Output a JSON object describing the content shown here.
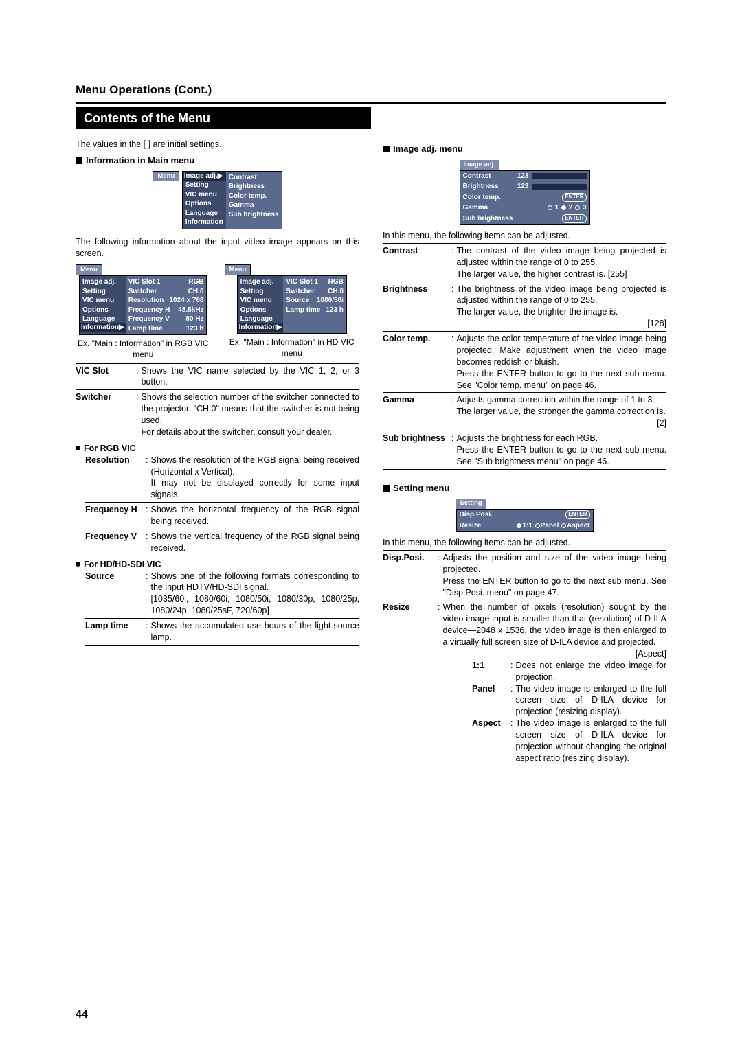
{
  "section_title": "Menu Operations (Cont.)",
  "title_bar": "Contents of the Menu",
  "intro_left": "The values in the [ ] are initial settings.",
  "info_main_heading": "Information in Main menu",
  "main_menu": {
    "tab": "Menu",
    "left": [
      "Image adj.▶",
      "Setting",
      "VIC menu",
      "Options",
      "Language",
      "Information"
    ],
    "right": [
      "Contrast",
      "Brightness",
      "Color temp.",
      "Gamma",
      "Sub brightness"
    ]
  },
  "left_paragraph": "The following information about the input video image appears on this screen.",
  "rgb_menu": {
    "tab": "Menu",
    "left": [
      "Image adj.",
      "Setting",
      "VIC menu",
      "Options",
      "Language",
      "Information▶"
    ],
    "kv": [
      {
        "k": "VIC Slot 1",
        "v": "RGB"
      },
      {
        "k": "Switcher",
        "v": "CH.0"
      },
      {
        "k": "Resolution",
        "v": "1024 x 768"
      },
      {
        "k": "Frequency H",
        "v": "48.5kHz"
      },
      {
        "k": "Frequency V",
        "v": "80 Hz"
      },
      {
        "k": "Lamp time",
        "v": "123 h"
      }
    ],
    "caption": "Ex. \"Main : Information\" in RGB VIC menu"
  },
  "hd_menu": {
    "tab": "Menu",
    "left": [
      "Image adj.",
      "Setting",
      "VIC menu",
      "Options",
      "Language",
      "Information▶"
    ],
    "kv": [
      {
        "k": "VIC Slot 1",
        "v": "RGB"
      },
      {
        "k": "Switcher",
        "v": "CH.0"
      },
      {
        "k": "Source",
        "v": "1080/50i"
      },
      {
        "k": "",
        "v": ""
      },
      {
        "k": "",
        "v": ""
      },
      {
        "k": "Lamp time",
        "v": "123 h"
      }
    ],
    "caption": "Ex. \"Main : Information\" in HD VIC menu"
  },
  "defs_left": [
    {
      "term": "VIC Slot",
      "desc": "Shows the VIC name selected by the VIC 1, 2, or 3 button."
    },
    {
      "term": "Switcher",
      "desc": "Shows the selection number of the switcher connected to the projector. \"CH.0\" means that the switcher is not being used.\nFor details about the switcher, consult your dealer."
    }
  ],
  "rgb_heading": "For RGB VIC",
  "rgb_defs": [
    {
      "term": "Resolution",
      "desc": "Shows the resolution of the RGB signal being received (Horizontal x Vertical).\nIt may not be displayed correctly for some input signals."
    },
    {
      "term": "Frequency H",
      "desc": "Shows the horizontal frequency of the RGB signal being received."
    },
    {
      "term": "Frequency V",
      "desc": "Shows the vertical frequency of the RGB signal being received."
    }
  ],
  "hd_heading": "For HD/HD-SDI VIC",
  "hd_defs": [
    {
      "term": "Source",
      "desc": "Shows one of the following formats corresponding to the input HDTV/HD-SDI signal.\n[1035/60i, 1080/60i, 1080/50i, 1080/30p, 1080/25p, 1080/24p, 1080/25sF, 720/60p]"
    },
    {
      "term": "Lamp time",
      "desc": "Shows the accumulated use hours of the light-source lamp."
    }
  ],
  "image_adj_heading": "Image adj. menu",
  "image_adj_menu": {
    "tab": "Image adj.",
    "rows": [
      {
        "label": "Contrast",
        "val": "123",
        "bar": 60
      },
      {
        "label": "Brightness",
        "val": "123",
        "bar": 40
      },
      {
        "label": "Color temp.",
        "btn": "ENTER"
      },
      {
        "label": "Gamma",
        "opts": [
          "1",
          "2",
          "3"
        ],
        "sel": 1
      },
      {
        "label": "Sub brightness",
        "btn": "ENTER"
      }
    ]
  },
  "image_adj_intro": "In this menu, the following items can be adjusted.",
  "image_adj_defs": [
    {
      "term": "Contrast",
      "desc": "The contrast of the video image being projected is adjusted within the range of 0 to 255.\nThe larger value, the higher contrast is. [255]"
    },
    {
      "term": "Brightness",
      "desc": "The brightness of the video image being projected is adjusted within the range of 0 to 255.\nThe larger value, the brighter the image is.",
      "tail": "[128]"
    },
    {
      "term": "Color temp.",
      "desc": "Adjusts the color temperature of the video image being projected. Make adjustment when the video image becomes reddish or bluish.\nPress the ENTER button to go to the next sub menu. See \"Color temp. menu\" on page 46."
    },
    {
      "term": "Gamma",
      "desc": "Adjusts gamma correction within the range of 1 to 3.\nThe larger value, the stronger the gamma correction is.",
      "tail": "[2]"
    },
    {
      "term": "Sub brightness",
      "desc": "Adjusts the brightness for each RGB.\nPress the ENTER button to go to the next sub menu. See \"Sub brightness menu\" on page 46."
    }
  ],
  "setting_heading": "Setting menu",
  "setting_menu": {
    "tab": "Setting",
    "rows": [
      {
        "label": "Disp.Posi.",
        "btn": "ENTER"
      },
      {
        "label": "Resize",
        "opts": [
          "1:1",
          "Panel",
          "Aspect"
        ],
        "sel": 0
      }
    ]
  },
  "setting_intro": "In this menu, the following items can be adjusted.",
  "setting_defs": [
    {
      "term": "Disp.Posi.",
      "desc": "Adjusts the position and size of the video image being projected.\nPress the ENTER button to go to the next sub menu. See \"Disp.Posi. menu\" on page 47."
    },
    {
      "term": "Resize",
      "desc": "When the number of pixels (resolution) sought by the video image input is smaller than that (resolution) of D-ILA device—2048 x 1536, the video image is then enlarged to a virtually full screen size of D-ILA device and projected.",
      "tail": "[Aspect]"
    }
  ],
  "resize_opts": [
    {
      "term": "1:1",
      "desc": "Does not enlarge the video image for projection."
    },
    {
      "term": "Panel",
      "desc": "The video image is enlarged to the full screen size of D-ILA device for projection (resizing display)."
    },
    {
      "term": "Aspect",
      "desc": "The video image is enlarged to the full screen size of D-ILA device for projection without changing the original aspect ratio (resizing display)."
    }
  ],
  "page_num": "44"
}
